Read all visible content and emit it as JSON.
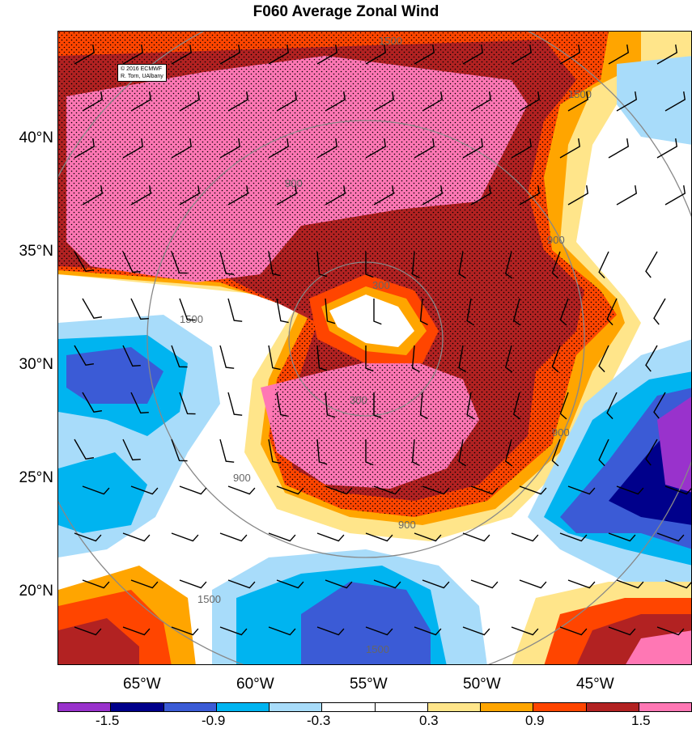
{
  "title": "F060 Average Zonal Wind",
  "credit": [
    "© 2016 ECMWF",
    "R. Torn, UAlbany"
  ],
  "map": {
    "lat_labels": [
      "40°N",
      "35°N",
      "30°N",
      "25°N",
      "20°N"
    ],
    "lon_labels": [
      "65°W",
      "60°W",
      "55°W",
      "50°W",
      "45°W"
    ],
    "range_ring_labels": [
      "300",
      "300",
      "900",
      "900",
      "900",
      "900",
      "900",
      "1500",
      "1500",
      "1500",
      "1500",
      "1500"
    ]
  },
  "colorbar": {
    "colors": [
      "#9932cc",
      "#00008b",
      "#3b5bd6",
      "#00b4f0",
      "#a8dcfa",
      "#ffffff",
      "#ffffff",
      "#ffe58a",
      "#ffa500",
      "#ff4500",
      "#b22222",
      "#ff77b4"
    ],
    "labels": [
      "-1.5",
      "-0.9",
      "-0.3",
      "0.3",
      "0.9",
      "1.5"
    ]
  }
}
